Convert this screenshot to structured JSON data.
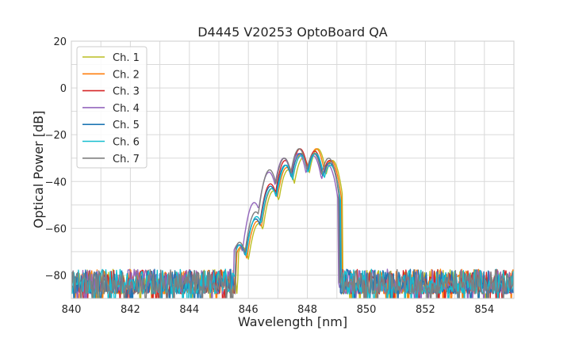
{
  "chart_data": {
    "type": "line",
    "title": "D4445 V20253 OptoBoard QA",
    "xlabel": "Wavelength [nm]",
    "ylabel": "Optical Power [dB]",
    "xlim": [
      840,
      855
    ],
    "ylim": [
      -90,
      20
    ],
    "xticks": [
      840,
      842,
      844,
      846,
      848,
      850,
      852,
      854
    ],
    "yticks": [
      20,
      0,
      -20,
      -40,
      -60,
      -80
    ],
    "xtick_labels": [
      "840",
      "842",
      "844",
      "846",
      "848",
      "850",
      "852",
      "854"
    ],
    "ytick_labels": [
      "20",
      "0",
      "−20",
      "−40",
      "−60",
      "−80"
    ],
    "grid": true,
    "legend_position": "top-left",
    "noise_floor_db": -85,
    "series": [
      {
        "name": "Ch. 1",
        "color": "#bcbd22",
        "peaks": [
          [
            845.8,
            -68
          ],
          [
            846.35,
            -58
          ],
          [
            846.85,
            -44
          ],
          [
            847.35,
            -35
          ],
          [
            847.85,
            -30
          ],
          [
            848.35,
            -26
          ],
          [
            848.85,
            -31
          ]
        ]
      },
      {
        "name": "Ch. 2",
        "color": "#ff7f0e",
        "peaks": [
          [
            845.75,
            -68
          ],
          [
            846.3,
            -57
          ],
          [
            846.8,
            -43
          ],
          [
            847.3,
            -34
          ],
          [
            847.8,
            -28
          ],
          [
            848.3,
            -26
          ],
          [
            848.8,
            -31
          ]
        ]
      },
      {
        "name": "Ch. 3",
        "color": "#d62728",
        "peaks": [
          [
            845.7,
            -67
          ],
          [
            846.25,
            -56
          ],
          [
            846.75,
            -41
          ],
          [
            847.25,
            -31
          ],
          [
            847.75,
            -26
          ],
          [
            848.25,
            -27
          ],
          [
            848.75,
            -31
          ]
        ]
      },
      {
        "name": "Ch. 4",
        "color": "#9467bd",
        "peaks": [
          [
            845.65,
            -67
          ],
          [
            846.2,
            -49
          ],
          [
            846.7,
            -36
          ],
          [
            847.2,
            -30
          ],
          [
            847.7,
            -28
          ],
          [
            848.2,
            -29
          ],
          [
            848.7,
            -33
          ]
        ]
      },
      {
        "name": "Ch. 5",
        "color": "#1f77b4",
        "peaks": [
          [
            845.7,
            -67
          ],
          [
            846.25,
            -56
          ],
          [
            846.75,
            -42
          ],
          [
            847.25,
            -33
          ],
          [
            847.75,
            -28
          ],
          [
            848.25,
            -28
          ],
          [
            848.75,
            -32
          ]
        ]
      },
      {
        "name": "Ch. 6",
        "color": "#17becf",
        "peaks": [
          [
            845.72,
            -67
          ],
          [
            846.28,
            -55
          ],
          [
            846.78,
            -43
          ],
          [
            847.28,
            -33
          ],
          [
            847.78,
            -29
          ],
          [
            848.28,
            -28
          ],
          [
            848.78,
            -33
          ]
        ]
      },
      {
        "name": "Ch. 7",
        "color": "#7f7f7f",
        "peaks": [
          [
            845.7,
            -66
          ],
          [
            846.25,
            -53
          ],
          [
            846.72,
            -35
          ],
          [
            847.22,
            -30
          ],
          [
            847.72,
            -26
          ],
          [
            848.22,
            -28
          ],
          [
            848.72,
            -30
          ]
        ]
      }
    ]
  }
}
